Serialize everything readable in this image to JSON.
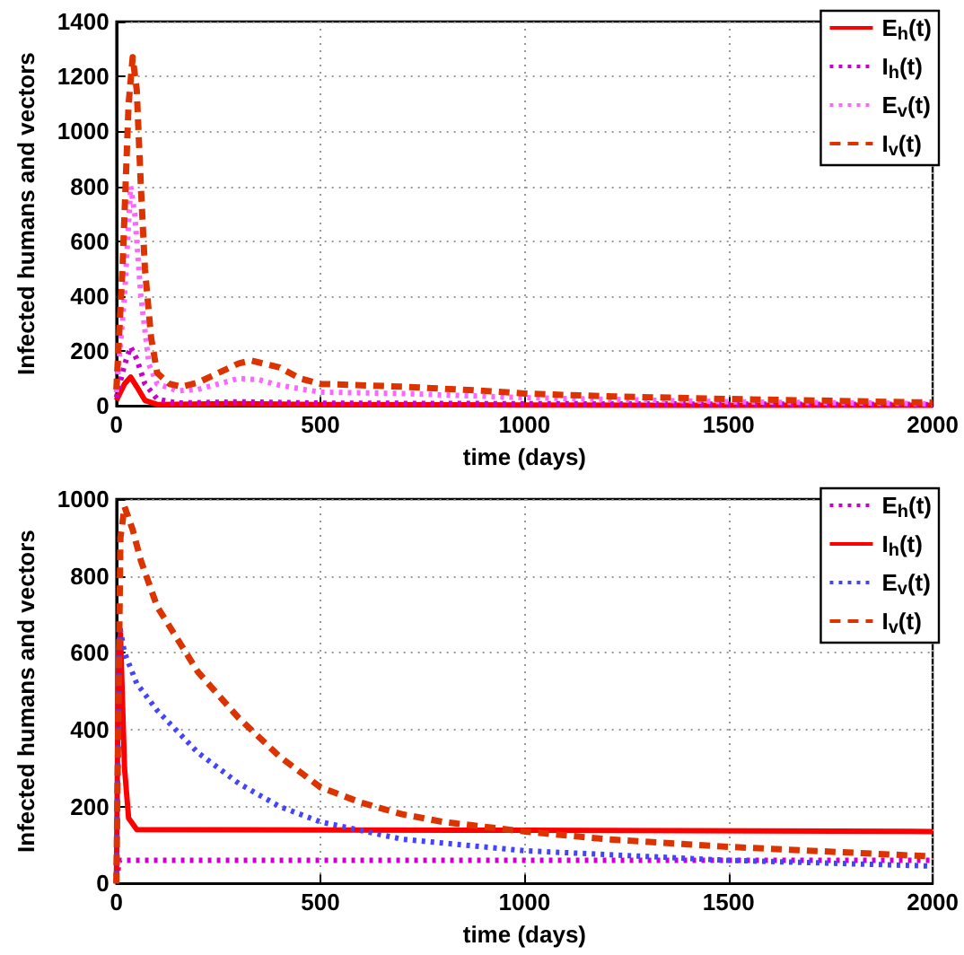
{
  "chart_data": [
    {
      "type": "line",
      "xlabel": "time (days)",
      "ylabel": "Infected humans and vectors",
      "xlim": [
        0,
        2000
      ],
      "xticks": [
        0,
        500,
        1000,
        1500,
        2000
      ],
      "ylim": [
        0,
        1400
      ],
      "yticks": [
        0,
        200,
        400,
        600,
        800,
        1000,
        1200,
        1400
      ],
      "grid": true,
      "legend": "top right",
      "marker": "none",
      "series": [
        {
          "name": "E$_{h}$(t)",
          "color": "#ff0000",
          "line_style": "solid",
          "x": [
            0,
            20,
            35,
            50,
            70,
            100,
            300,
            500,
            1000,
            2000
          ],
          "values": [
            20,
            80,
            105,
            70,
            20,
            5,
            8,
            5,
            3,
            2
          ]
        },
        {
          "name": "I$_{h}$(t)",
          "color": "#cc00cc",
          "line_style": "dotted",
          "x": [
            0,
            20,
            35,
            50,
            70,
            100,
            150,
            300,
            500,
            1000,
            2000
          ],
          "values": [
            30,
            150,
            215,
            170,
            80,
            25,
            10,
            15,
            10,
            8,
            5
          ]
        },
        {
          "name": "E$_{v}$(t)",
          "color": "#ff66ff",
          "line_style": "dotted",
          "x": [
            0,
            20,
            35,
            45,
            60,
            80,
            100,
            150,
            200,
            300,
            350,
            400,
            500,
            700,
            1000,
            1500,
            2000
          ],
          "values": [
            50,
            400,
            800,
            700,
            400,
            150,
            80,
            55,
            60,
            100,
            95,
            75,
            50,
            45,
            30,
            15,
            8
          ]
        },
        {
          "name": "I$_{v}$(t)",
          "color": "#dd3300",
          "line_style": "dashed",
          "x": [
            0,
            15,
            30,
            40,
            50,
            60,
            70,
            85,
            100,
            130,
            160,
            200,
            250,
            300,
            330,
            400,
            450,
            500,
            700,
            900,
            1000,
            1200,
            1500,
            2000
          ],
          "values": [
            60,
            500,
            1100,
            1270,
            1150,
            800,
            500,
            250,
            120,
            80,
            70,
            85,
            120,
            155,
            165,
            140,
            100,
            80,
            70,
            55,
            45,
            35,
            25,
            12
          ]
        }
      ]
    },
    {
      "type": "line",
      "xlabel": "time (days)",
      "ylabel": "Infected humans and vectors",
      "xlim": [
        0,
        2000
      ],
      "xticks": [
        0,
        500,
        1000,
        1500,
        2000
      ],
      "ylim": [
        0,
        1000
      ],
      "yticks": [
        0,
        200,
        400,
        600,
        800,
        1000
      ],
      "grid": true,
      "legend": "top right",
      "marker": "none",
      "series": [
        {
          "name": "E$_{h}$(t)",
          "color": "#cc00cc",
          "line_style": "dotted",
          "x": [
            0,
            8,
            20,
            2000
          ],
          "values": [
            10,
            60,
            60,
            60
          ]
        },
        {
          "name": "I$_{h}$(t)",
          "color": "#ff0000",
          "line_style": "solid",
          "x": [
            0,
            5,
            10,
            20,
            30,
            50,
            1000,
            2000
          ],
          "values": [
            0,
            600,
            650,
            300,
            170,
            140,
            138,
            135
          ]
        },
        {
          "name": "E$_{v}$(t)",
          "color": "#4444ff",
          "line_style": "dotted",
          "x": [
            0,
            8,
            20,
            50,
            100,
            200,
            300,
            400,
            500,
            700,
            1000,
            1500,
            2000
          ],
          "values": [
            0,
            670,
            600,
            520,
            450,
            340,
            260,
            200,
            160,
            115,
            85,
            60,
            45
          ]
        },
        {
          "name": "I$_{v}$(t)",
          "color": "#dd3300",
          "line_style": "dashed",
          "x": [
            0,
            10,
            20,
            40,
            60,
            100,
            200,
            300,
            400,
            500,
            600,
            700,
            800,
            1000,
            1200,
            1500,
            2000
          ],
          "values": [
            0,
            900,
            980,
            920,
            840,
            720,
            550,
            430,
            330,
            250,
            210,
            180,
            160,
            135,
            115,
            95,
            70
          ]
        }
      ]
    }
  ]
}
